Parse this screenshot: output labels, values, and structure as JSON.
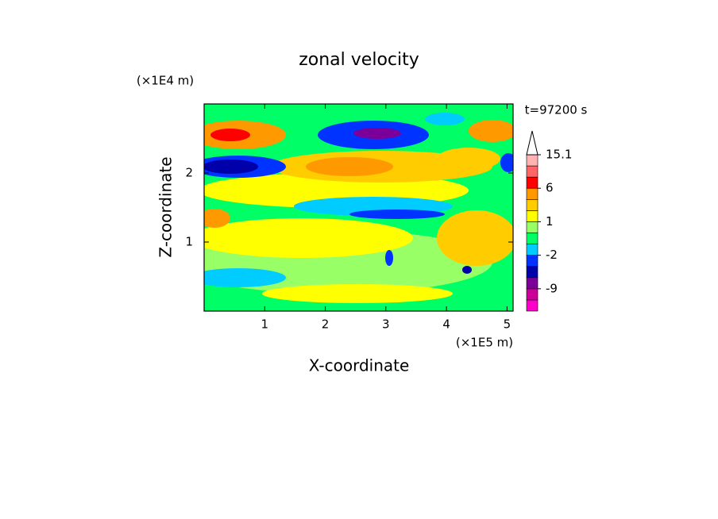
{
  "chart_data": {
    "type": "contour",
    "title": "zonal velocity",
    "x_label": "X-coordinate",
    "y_label": "Z-coordinate",
    "x_unit": "(×1E5 m)",
    "y_unit": "(×1E4 m)",
    "time_label": "t=97200 s",
    "xlim": [
      0,
      5.1
    ],
    "xticks": [
      1,
      2,
      3,
      4,
      5
    ],
    "ylim": [
      0,
      3
    ],
    "yticks": [
      1,
      2
    ],
    "colorbar": {
      "levels": [
        -15,
        -12,
        -9,
        -6,
        -3,
        -2,
        -1,
        0,
        1,
        2,
        4,
        6,
        9,
        12,
        15.1
      ],
      "colors": [
        "#ff00cc",
        "#cc0099",
        "#7a0099",
        "#0000aa",
        "#0033ff",
        "#00ccff",
        "#00ff66",
        "#99ff66",
        "#ffff00",
        "#ffcc00",
        "#ff9900",
        "#ff0000",
        "#ff6666",
        "#ffb3b3"
      ],
      "ticks": [
        -9,
        -2,
        1,
        6,
        15.1
      ]
    }
  }
}
